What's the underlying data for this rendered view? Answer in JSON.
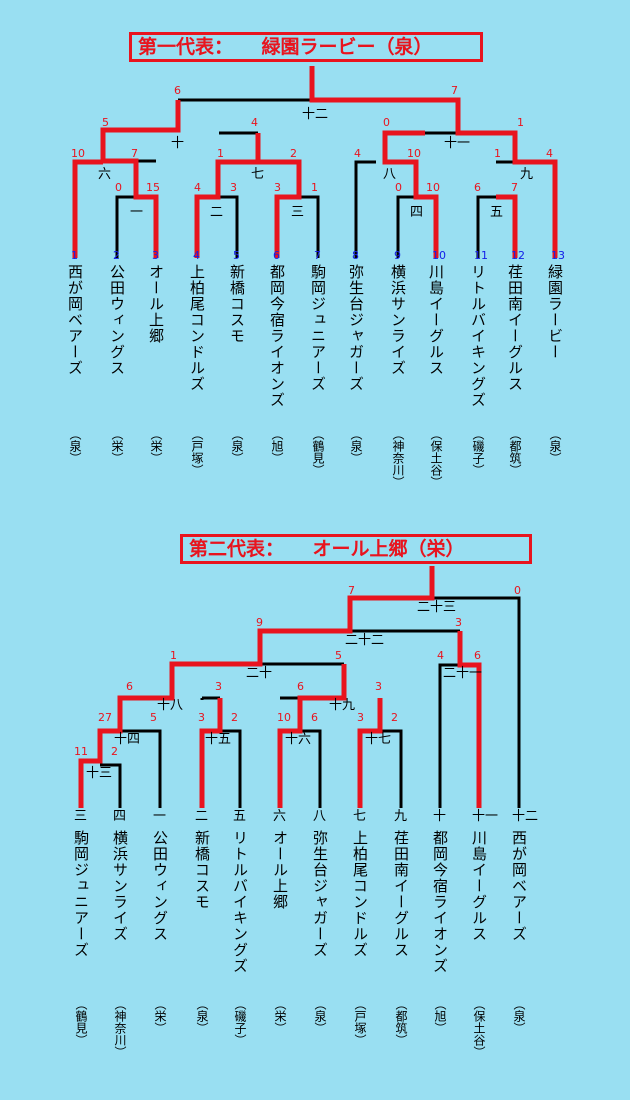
{
  "colors": {
    "background": "#99dff2",
    "winner": "#e8141e",
    "line": "#000000",
    "seed": "#1421e8"
  },
  "bracket1": {
    "title": "第一代表：　　緑園ラービー（泉）",
    "teams": [
      {
        "seed": "1",
        "name": "西が岡ベアーズ",
        "district": "（泉）"
      },
      {
        "seed": "2",
        "name": "公田ウィングス",
        "district": "（栄）"
      },
      {
        "seed": "3",
        "name": "オール上郷",
        "district": "（栄）"
      },
      {
        "seed": "4",
        "name": "上柏尾コンドルズ",
        "district": "（戸塚）"
      },
      {
        "seed": "5",
        "name": "新橋コスモ",
        "district": "（泉）"
      },
      {
        "seed": "6",
        "name": "都岡今宿ライオンズ",
        "district": "（旭）"
      },
      {
        "seed": "7",
        "name": "駒岡ジュニアーズ",
        "district": "（鶴見）"
      },
      {
        "seed": "8",
        "name": "弥生台ジャガーズ",
        "district": "（泉）"
      },
      {
        "seed": "9",
        "name": "横浜サンライズ",
        "district": "（神奈川）"
      },
      {
        "seed": "10",
        "name": "川島イーグルス",
        "district": "（保土谷）"
      },
      {
        "seed": "11",
        "name": "リトルバイキングズ",
        "district": "（磯子）"
      },
      {
        "seed": "12",
        "name": "荏田南イーグルス",
        "district": "（都筑）"
      },
      {
        "seed": "13",
        "name": "緑園ラービー",
        "district": "（泉）"
      }
    ],
    "scores": {
      "g1": [
        "0",
        "15"
      ],
      "g2": [
        "4",
        "3"
      ],
      "g3": [
        "3",
        "1"
      ],
      "g4": [
        "0",
        "10"
      ],
      "g5": [
        "6",
        "7"
      ],
      "g6": [
        "10",
        "7"
      ],
      "g7": [
        "1",
        "2"
      ],
      "g8": [
        "4",
        "10"
      ],
      "g9": [
        "1",
        "4"
      ],
      "g10": [
        "5",
        "4"
      ],
      "g11": [
        "0",
        "1"
      ],
      "g12": [
        "6",
        "7"
      ]
    },
    "games": [
      "一",
      "二",
      "三",
      "四",
      "五",
      "六",
      "七",
      "八",
      "九",
      "十",
      "十一",
      "十二"
    ]
  },
  "bracket2": {
    "title": "第二代表：　　オール上郷（栄）",
    "teams": [
      {
        "game": "三",
        "name": "駒岡ジュニアーズ",
        "district": "（鶴見）"
      },
      {
        "game": "四",
        "name": "横浜サンライズ",
        "district": "（神奈川）"
      },
      {
        "game": "一",
        "name": "公田ウィングス",
        "district": "（栄）"
      },
      {
        "game": "二",
        "name": "新橋コスモ",
        "district": "（泉）"
      },
      {
        "game": "五",
        "name": "リトルバイキングズ",
        "district": "（磯子）"
      },
      {
        "game": "六",
        "name": "オール上郷",
        "district": "（栄）"
      },
      {
        "game": "八",
        "name": "弥生台ジャガーズ",
        "district": "（泉）"
      },
      {
        "game": "七",
        "name": "上柏尾コンドルズ",
        "district": "（戸塚）"
      },
      {
        "game": "九",
        "name": "荏田南イーグルス",
        "district": "（都筑）"
      },
      {
        "game": "十",
        "name": "都岡今宿ライオンズ",
        "district": "（旭）"
      },
      {
        "game": "十一",
        "name": "川島イーグルス",
        "district": "（保土谷）"
      },
      {
        "game": "十二",
        "name": "西が岡ベアーズ",
        "district": "（泉）"
      }
    ],
    "scores": {
      "g13": [
        "11",
        "2"
      ],
      "g14": [
        "27",
        "5"
      ],
      "g15": [
        "3",
        "2"
      ],
      "g16": [
        "10",
        "6"
      ],
      "g17": [
        "3",
        "2"
      ],
      "g18": [
        "6",
        "3"
      ],
      "g19": [
        "6",
        "3"
      ],
      "g20": [
        "1",
        "5"
      ],
      "g21": [
        "4",
        "6"
      ],
      "g22": [
        "9",
        "3"
      ],
      "g23": [
        "7",
        "0"
      ]
    },
    "games": [
      "十三",
      "十四",
      "十五",
      "十六",
      "十七",
      "十八",
      "十九",
      "二十",
      "二十一",
      "二十二",
      "二十三"
    ]
  }
}
